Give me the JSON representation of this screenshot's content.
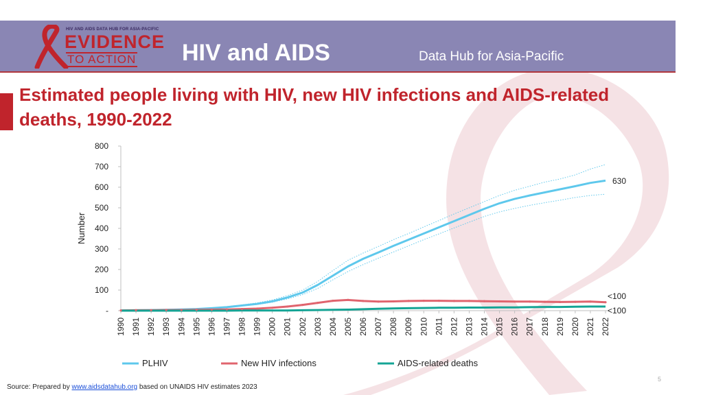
{
  "header": {
    "logo_tagline": "HIV AND AIDS DATA HUB FOR ASIA-PACIFIC",
    "logo_line1": "EVIDENCE",
    "logo_line2": "TO ACTION",
    "title": "HIV and AIDS",
    "subtitle": "Data Hub for Asia-Pacific"
  },
  "page_title": "Estimated people living with HIV, new HIV infections and AIDS-related deaths, 1990-2022",
  "footer": {
    "source_prefix": "Source: Prepared by",
    "source_link": "www.aidsdatahub.org",
    "source_suffix": "based on UNAIDS HIV estimates 2023",
    "page_number": "5"
  },
  "colors": {
    "header_band": "#8a86b4",
    "brand_red": "#c0242c",
    "plhiv": "#5ec8ec",
    "new_infections": "#e0646e",
    "deaths": "#14a495"
  },
  "chart_data": {
    "type": "line",
    "title": "",
    "xlabel": "",
    "ylabel": "Number",
    "ylim": [
      0,
      800
    ],
    "y_ticks": [
      0,
      100,
      200,
      300,
      400,
      500,
      600,
      700,
      800
    ],
    "y_tick_labels": [
      "-",
      "100",
      "200",
      "300",
      "400",
      "500",
      "600",
      "700",
      "800"
    ],
    "categories": [
      "1990",
      "1991",
      "1992",
      "1993",
      "1994",
      "1995",
      "1996",
      "1997",
      "1998",
      "1999",
      "2000",
      "2001",
      "2002",
      "2003",
      "2004",
      "2005",
      "2006",
      "2007",
      "2008",
      "2009",
      "2010",
      "2011",
      "2012",
      "2013",
      "2014",
      "2015",
      "2016",
      "2017",
      "2018",
      "2019",
      "2020",
      "2021",
      "2022"
    ],
    "legend_position": "bottom",
    "series": [
      {
        "name": "PLHIV",
        "color": "#5ec8ec",
        "values": [
          1,
          2,
          3,
          4,
          6,
          8,
          12,
          17,
          25,
          33,
          45,
          64,
          88,
          125,
          170,
          215,
          252,
          283,
          315,
          345,
          375,
          405,
          435,
          465,
          495,
          522,
          543,
          560,
          575,
          590,
          605,
          621,
          632
        ],
        "lower": [
          1,
          2,
          3,
          4,
          6,
          8,
          11,
          16,
          23,
          30,
          41,
          57,
          78,
          108,
          150,
          190,
          224,
          255,
          285,
          315,
          345,
          373,
          402,
          430,
          458,
          480,
          497,
          512,
          525,
          537,
          550,
          560,
          566
        ],
        "upper": [
          1,
          2,
          3,
          4,
          7,
          9,
          14,
          20,
          28,
          38,
          52,
          73,
          100,
          142,
          195,
          245,
          280,
          312,
          345,
          375,
          407,
          438,
          470,
          500,
          530,
          560,
          585,
          605,
          625,
          640,
          660,
          688,
          710
        ],
        "end_label": "630"
      },
      {
        "name": "New HIV infections",
        "color": "#e0646e",
        "values": [
          1,
          2,
          2,
          3,
          3,
          4,
          5,
          6,
          8,
          10,
          14,
          20,
          28,
          38,
          48,
          52,
          47,
          44,
          45,
          47,
          48,
          48,
          47,
          47,
          46,
          45,
          44,
          44,
          43,
          42,
          43,
          44,
          41
        ],
        "end_label": "<100"
      },
      {
        "name": "AIDS-related deaths",
        "color": "#14a495",
        "values": [
          0,
          0,
          0,
          0,
          0,
          0,
          0,
          0,
          1,
          1,
          1,
          1,
          2,
          3,
          4,
          5,
          7,
          9,
          11,
          12,
          13,
          14,
          14,
          15,
          15,
          16,
          16,
          17,
          18,
          18,
          19,
          20,
          20
        ],
        "end_label": "<100"
      }
    ]
  }
}
